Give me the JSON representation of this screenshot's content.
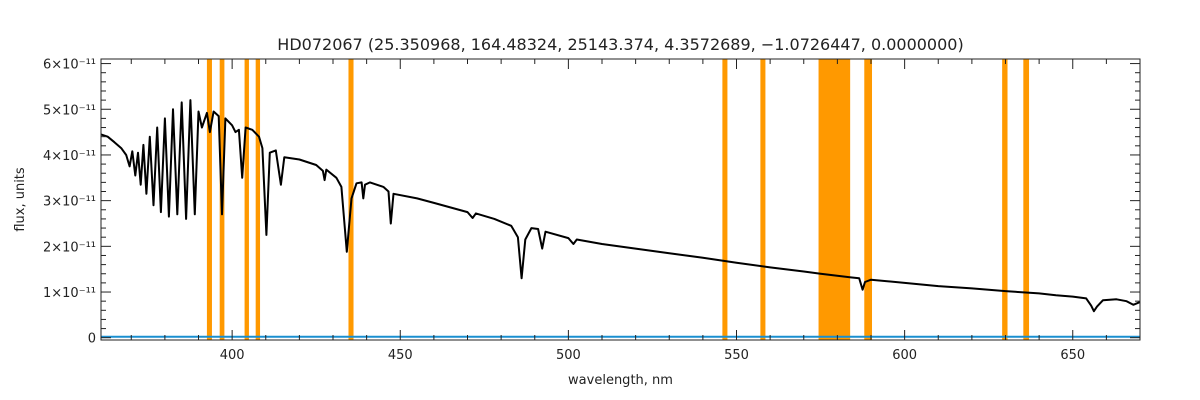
{
  "chart_data": {
    "type": "line",
    "title": "HD072067   (25.350968, 164.48324, 25143.374, 4.3572689, −1.0726447, 0.0000000)",
    "xlabel": "wavelength, nm",
    "ylabel": "flux, units",
    "xlim": [
      361,
      670
    ],
    "ylim": [
      -5e-13,
      6.1e-11
    ],
    "x_ticks": [
      400,
      450,
      500,
      550,
      600,
      650
    ],
    "y_ticks": [
      {
        "value": 0,
        "label": "0"
      },
      {
        "value": 1e-11,
        "label": "1×10⁻¹¹"
      },
      {
        "value": 2e-11,
        "label": "2×10⁻¹¹"
      },
      {
        "value": 3e-11,
        "label": "3×10⁻¹¹"
      },
      {
        "value": 4e-11,
        "label": "4×10⁻¹¹"
      },
      {
        "value": 5e-11,
        "label": "5×10⁻¹¹"
      },
      {
        "value": 6e-11,
        "label": "6×10⁻¹¹"
      }
    ],
    "grid": false,
    "colors": {
      "spectrum": "#000000",
      "mask": "#ff9900",
      "error": "#1a8fd0"
    },
    "masked_bands": [
      [
        392.5,
        394.0
      ],
      [
        396.3,
        397.7
      ],
      [
        403.7,
        405.0
      ],
      [
        407.0,
        408.3
      ],
      [
        434.6,
        436.1
      ],
      [
        545.8,
        547.3
      ],
      [
        557.1,
        558.6
      ],
      [
        574.4,
        583.8
      ],
      [
        588.0,
        590.3
      ],
      [
        629.0,
        630.6
      ],
      [
        635.3,
        637.0
      ]
    ],
    "series": [
      {
        "values": [
          [
            361,
            4.45e-11
          ],
          [
            363,
            4.4e-11
          ],
          [
            365,
            4.28e-11
          ],
          [
            367,
            4.15e-11
          ],
          [
            368.5,
            4e-11
          ],
          [
            369.5,
            3.75e-11
          ],
          [
            370.3,
            4.08e-11
          ],
          [
            371.2,
            3.55e-11
          ],
          [
            372.0,
            4.05e-11
          ],
          [
            372.8,
            3.35e-11
          ],
          [
            373.6,
            4.22e-11
          ],
          [
            374.5,
            3.15e-11
          ],
          [
            375.5,
            4.4e-11
          ],
          [
            376.6,
            2.9e-11
          ],
          [
            377.7,
            4.6e-11
          ],
          [
            378.8,
            2.75e-11
          ],
          [
            380.0,
            4.8e-11
          ],
          [
            381.2,
            2.65e-11
          ],
          [
            382.4,
            5e-11
          ],
          [
            383.7,
            2.7e-11
          ],
          [
            385.0,
            5.15e-11
          ],
          [
            386.3,
            2.6e-11
          ],
          [
            387.6,
            5.2e-11
          ],
          [
            388.9,
            2.7e-11
          ],
          [
            390.0,
            4.95e-11
          ],
          [
            391.0,
            4.6e-11
          ],
          [
            392.5,
            4.92e-11
          ],
          [
            393.4,
            4.5e-11
          ],
          [
            394.5,
            4.95e-11
          ],
          [
            396.0,
            4.85e-11
          ],
          [
            397.0,
            2.7e-11
          ],
          [
            398.0,
            4.8e-11
          ],
          [
            400.0,
            4.65e-11
          ],
          [
            401.0,
            4.5e-11
          ],
          [
            402.0,
            4.55e-11
          ],
          [
            403.0,
            3.5e-11
          ],
          [
            404.0,
            4.6e-11
          ],
          [
            406.0,
            4.55e-11
          ],
          [
            408.0,
            4.4e-11
          ],
          [
            409.0,
            4.15e-11
          ],
          [
            410.2,
            2.25e-11
          ],
          [
            411.2,
            4.05e-11
          ],
          [
            413.0,
            4.1e-11
          ],
          [
            414.5,
            3.35e-11
          ],
          [
            415.5,
            3.95e-11
          ],
          [
            420.0,
            3.9e-11
          ],
          [
            425.0,
            3.78e-11
          ],
          [
            427.0,
            3.65e-11
          ],
          [
            427.5,
            3.45e-11
          ],
          [
            428.0,
            3.68e-11
          ],
          [
            431.0,
            3.5e-11
          ],
          [
            432.5,
            3.3e-11
          ],
          [
            434.1,
            1.88e-11
          ],
          [
            435.5,
            3.05e-11
          ],
          [
            437.0,
            3.38e-11
          ],
          [
            438.5,
            3.4e-11
          ],
          [
            439.0,
            3.05e-11
          ],
          [
            439.5,
            3.35e-11
          ],
          [
            441.0,
            3.4e-11
          ],
          [
            443.0,
            3.35e-11
          ],
          [
            445.0,
            3.3e-11
          ],
          [
            446.5,
            3.2e-11
          ],
          [
            447.2,
            2.5e-11
          ],
          [
            448.0,
            3.15e-11
          ],
          [
            455.0,
            3.05e-11
          ],
          [
            460.0,
            2.95e-11
          ],
          [
            465.0,
            2.85e-11
          ],
          [
            470.0,
            2.75e-11
          ],
          [
            471.5,
            2.62e-11
          ],
          [
            472.5,
            2.72e-11
          ],
          [
            478.0,
            2.6e-11
          ],
          [
            483.0,
            2.45e-11
          ],
          [
            485.0,
            2.2e-11
          ],
          [
            486.1,
            1.3e-11
          ],
          [
            487.2,
            2.15e-11
          ],
          [
            489.0,
            2.4e-11
          ],
          [
            491.0,
            2.38e-11
          ],
          [
            492.2,
            1.95e-11
          ],
          [
            493.2,
            2.32e-11
          ],
          [
            500.0,
            2.18e-11
          ],
          [
            501.5,
            2.05e-11
          ],
          [
            502.5,
            2.15e-11
          ],
          [
            510.0,
            2.05e-11
          ],
          [
            520.0,
            1.95e-11
          ],
          [
            530.0,
            1.85e-11
          ],
          [
            540.0,
            1.75e-11
          ],
          [
            550.0,
            1.64e-11
          ],
          [
            560.0,
            1.54e-11
          ],
          [
            570.0,
            1.45e-11
          ],
          [
            575.0,
            1.4e-11
          ],
          [
            584.0,
            1.32e-11
          ],
          [
            586.5,
            1.3e-11
          ],
          [
            587.5,
            1.05e-11
          ],
          [
            588.2,
            1.22e-11
          ],
          [
            590.0,
            1.27e-11
          ],
          [
            600.0,
            1.2e-11
          ],
          [
            610.0,
            1.13e-11
          ],
          [
            620.0,
            1.08e-11
          ],
          [
            630.0,
            1.02e-11
          ],
          [
            640.0,
            9.7e-12
          ],
          [
            645.0,
            9.3e-12
          ],
          [
            650.0,
            9e-12
          ],
          [
            654.0,
            8.6e-12
          ],
          [
            655.5,
            7e-12
          ],
          [
            656.3,
            5.8e-12
          ],
          [
            657.2,
            6.8e-12
          ],
          [
            659.0,
            8.2e-12
          ],
          [
            663.0,
            8.4e-12
          ],
          [
            666.0,
            8e-12
          ],
          [
            668.0,
            7.2e-12
          ],
          [
            670.0,
            7.8e-12
          ]
        ]
      },
      {
        "values": [
          [
            361,
            2e-13
          ],
          [
            670,
            2e-13
          ]
        ]
      }
    ]
  }
}
